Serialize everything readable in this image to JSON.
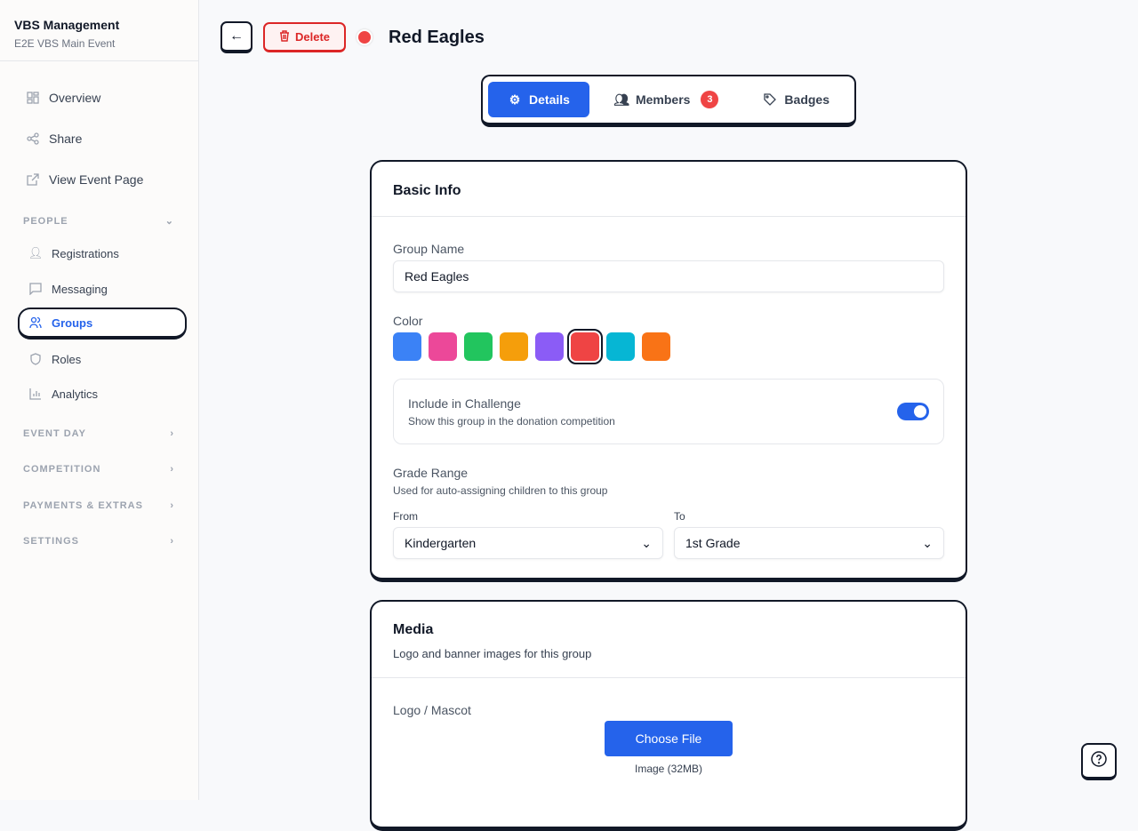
{
  "sidebar": {
    "title": "VBS Management",
    "subtitle": "E2E VBS Main Event",
    "top": [
      {
        "label": "Overview",
        "icon": "grid-icon"
      },
      {
        "label": "Share",
        "icon": "share-icon"
      },
      {
        "label": "View Event Page",
        "icon": "external-link-icon"
      }
    ],
    "people_label": "PEOPLE",
    "people": [
      {
        "label": "Registrations"
      },
      {
        "label": "Messaging"
      },
      {
        "label": "Groups"
      },
      {
        "label": "Roles"
      },
      {
        "label": "Analytics"
      }
    ],
    "sections": [
      "EVENT DAY",
      "COMPETITION",
      "PAYMENTS & EXTRAS",
      "SETTINGS"
    ]
  },
  "header": {
    "delete_label": "Delete",
    "title": "Red Eagles",
    "group_color": "#ef4444"
  },
  "tabs": {
    "details": "Details",
    "members": "Members",
    "members_count": "3",
    "badges": "Badges"
  },
  "basic": {
    "title": "Basic Info",
    "name_label": "Group Name",
    "name_value": "Red Eagles",
    "color_label": "Color",
    "colors": [
      "#3b82f6",
      "#ec4899",
      "#22c55e",
      "#f59e0b",
      "#8b5cf6",
      "#ef4444",
      "#06b6d4",
      "#f97316"
    ],
    "selected_color": "#ef4444",
    "challenge_title": "Include in Challenge",
    "challenge_desc": "Show this group in the donation competition",
    "challenge_on": true,
    "grade_title": "Grade Range",
    "grade_desc": "Used for auto-assigning children to this group",
    "from_label": "From",
    "from_value": "Kindergarten",
    "to_label": "To",
    "to_value": "1st Grade"
  },
  "media": {
    "title": "Media",
    "desc": "Logo and banner images for this group",
    "logo_label": "Logo / Mascot",
    "choose_label": "Choose File",
    "hint": "Image (32MB)"
  }
}
